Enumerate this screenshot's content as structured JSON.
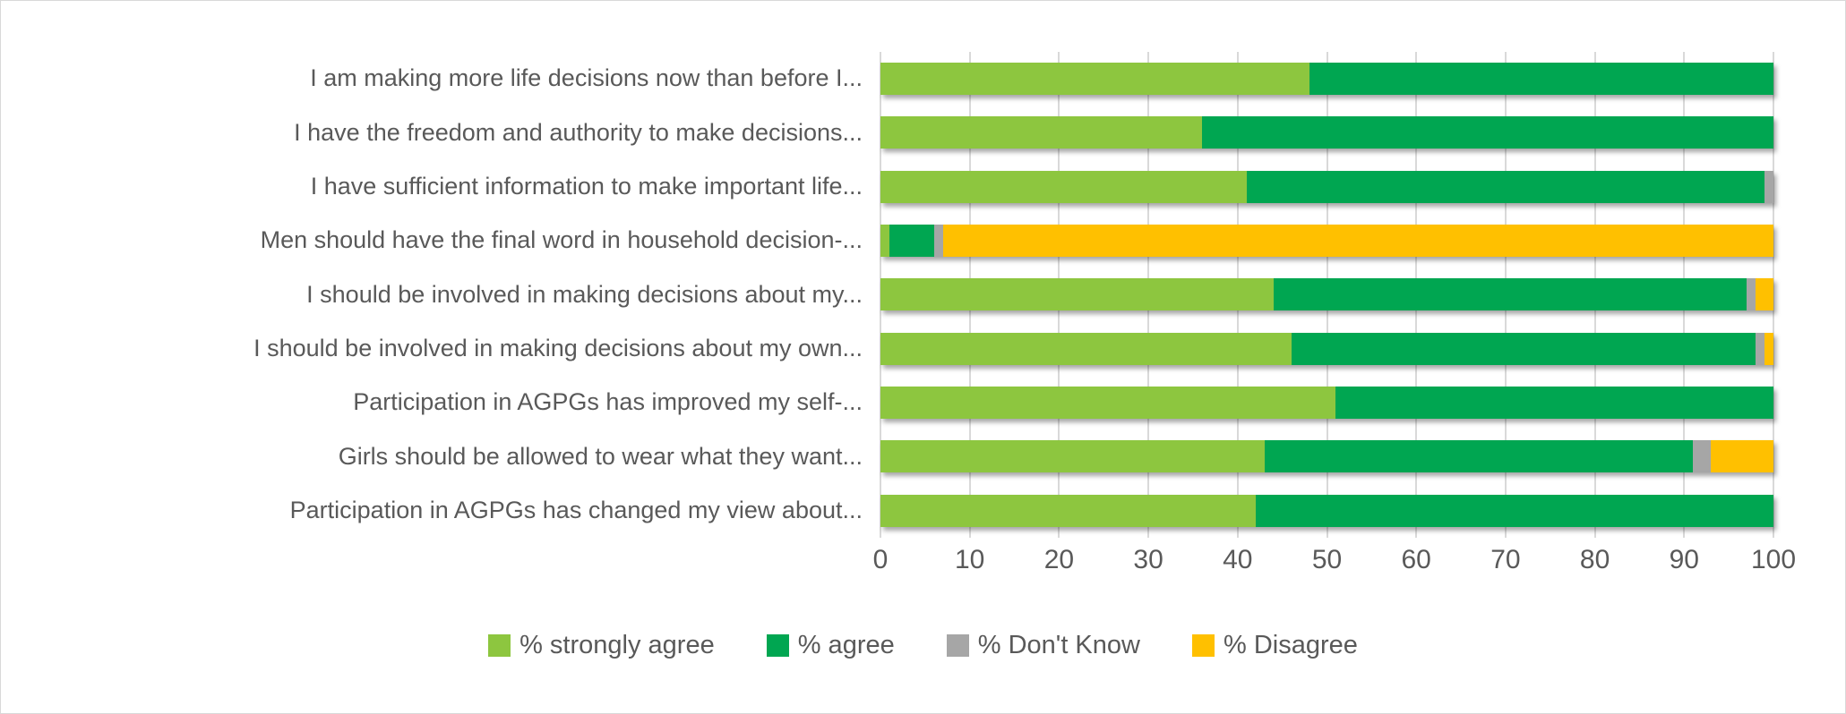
{
  "figure": {
    "background_color": "#FFFFFF",
    "border_color": "#D9D9D9",
    "text_color": "#595959",
    "gridline_color": "#D9D9D9"
  },
  "chart_data": {
    "type": "bar",
    "orientation": "horizontal",
    "stacked": true,
    "title": "",
    "xlabel": "",
    "ylabel": "",
    "xlim": [
      0,
      100
    ],
    "x_ticks": [
      0,
      10,
      20,
      30,
      40,
      50,
      60,
      70,
      80,
      90,
      100
    ],
    "grid": true,
    "legend_position": "bottom",
    "categories": [
      "I am making more life decisions now than before I...",
      "I have the freedom and authority to make decisions...",
      "I have sufficient information to make important life...",
      "Men should have the final word in household decision-...",
      "I should be involved in making decisions about my...",
      "I should be involved in making decisions about my own...",
      "Participation in AGPGs has improved my self-...",
      "Girls should be allowed to wear what they want...",
      "Participation in AGPGs has changed my view about..."
    ],
    "series": [
      {
        "name": "% strongly agree",
        "color": "#8DC63F",
        "values": [
          48,
          36,
          41,
          1,
          44,
          46,
          51,
          43,
          42
        ]
      },
      {
        "name": "% agree",
        "color": "#00A651",
        "values": [
          52,
          64,
          58,
          5,
          53,
          52,
          49,
          48,
          58
        ]
      },
      {
        "name": "% Don't Know",
        "color": "#A6A6A6",
        "values": [
          0,
          0,
          1,
          1,
          1,
          1,
          0,
          2,
          0
        ]
      },
      {
        "name": "% Disagree",
        "color": "#FFC000",
        "values": [
          0,
          0,
          0,
          93,
          2,
          1,
          0,
          7,
          0
        ]
      }
    ]
  }
}
